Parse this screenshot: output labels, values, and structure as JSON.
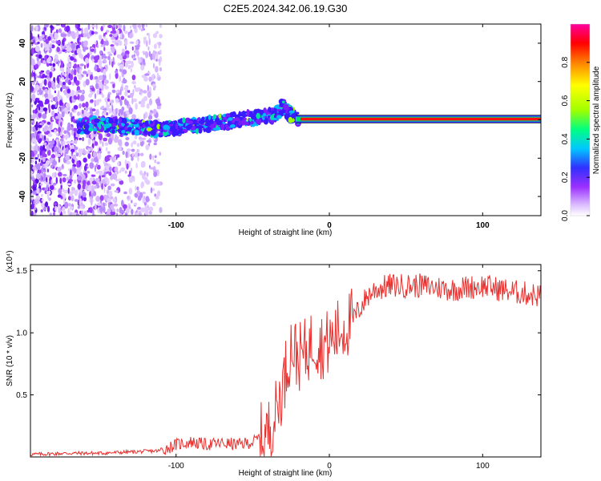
{
  "title": "C2E5.2024.342.06.19.G30",
  "chart_data": [
    {
      "type": "heatmap",
      "xlabel": "Height of straight line (km)",
      "ylabel": "Frequency (Hz)",
      "xlim": [
        -195,
        138
      ],
      "ylim": [
        -50,
        50
      ],
      "x_ticks": [
        -100,
        0,
        100
      ],
      "y_ticks": [
        -40,
        -20,
        0,
        20,
        40
      ],
      "colorbar": {
        "label": "Normalized spectral amplitude",
        "range": [
          0,
          1
        ],
        "ticks": [
          "0.0",
          "0.2",
          "0.4",
          "0.6",
          "0.8"
        ],
        "colors": [
          "#ffffff",
          "#d9b8ff",
          "#9b30ff",
          "#3030ff",
          "#00c8ff",
          "#00ff80",
          "#a0ff00",
          "#ffff00",
          "#ff8000",
          "#ff0000",
          "#ff00a0"
        ]
      },
      "ridge": {
        "x": [
          -165,
          -150,
          -130,
          -110,
          -100,
          -90,
          -80,
          -70,
          -60,
          -50,
          -40,
          -35,
          -30,
          -25,
          -20,
          -10,
          0,
          10,
          20,
          40,
          60,
          80,
          100,
          120,
          135
        ],
        "y": [
          -3,
          -2.5,
          -3.5,
          -5,
          -4,
          -3,
          -2,
          -1,
          0,
          1,
          2,
          3,
          7,
          2,
          1,
          0,
          -1,
          0,
          0,
          0,
          0,
          0,
          0,
          0,
          0
        ]
      }
    },
    {
      "type": "line",
      "xlabel": "Height of straight line (km)",
      "ylabel": "SNR (10 * v/v)",
      "y_multiplier": "(x10⁴)",
      "xlim": [
        -195,
        138
      ],
      "ylim": [
        0,
        1.55
      ],
      "x_ticks": [
        -100,
        0,
        100
      ],
      "y_ticks": [
        "0.5",
        "1.0",
        "1.5"
      ],
      "y_tick_values": [
        0.5,
        1.0,
        1.5
      ],
      "color": "#e8302e",
      "series": [
        {
          "x": [
            -195,
            -170,
            -150,
            -130,
            -110,
            -100,
            -90,
            -80,
            -70,
            -60,
            -50,
            -40,
            -35,
            -30,
            -25,
            -20,
            -15,
            -10,
            -5,
            0,
            5,
            10,
            15,
            20,
            25,
            30,
            40,
            60,
            80,
            100,
            120,
            138
          ],
          "y": [
            0.02,
            0.03,
            0.03,
            0.04,
            0.05,
            0.1,
            0.12,
            0.1,
            0.11,
            0.1,
            0.12,
            0.2,
            0.35,
            0.6,
            0.9,
            0.8,
            0.85,
            0.95,
            0.9,
            0.92,
            1.0,
            1.05,
            1.1,
            1.2,
            1.3,
            1.35,
            1.38,
            1.38,
            1.35,
            1.38,
            1.33,
            1.3
          ]
        }
      ]
    }
  ]
}
